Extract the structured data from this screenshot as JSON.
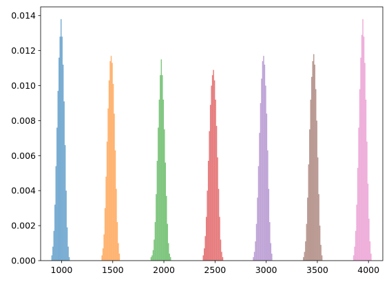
{
  "chart_data": {
    "type": "bar",
    "title": "",
    "xlabel": "",
    "ylabel": "",
    "xlim": [
      795,
      4140
    ],
    "ylim": [
      0,
      0.0145
    ],
    "grid": false,
    "legend": "none",
    "x_ticks": [
      1000,
      1500,
      2000,
      2500,
      3000,
      3500,
      4000
    ],
    "y_ticks": [
      0.0,
      0.002,
      0.004,
      0.006,
      0.008,
      0.01,
      0.012,
      0.014
    ],
    "y_tick_labels": [
      "0.000",
      "0.002",
      "0.004",
      "0.006",
      "0.008",
      "0.010",
      "0.012",
      "0.014"
    ],
    "bin_width": 10,
    "bar_opacity": 0.6,
    "series": [
      {
        "color": "#1f77b4",
        "bins": [
          [
            900,
            0.0003
          ],
          [
            910,
            0.0008
          ],
          [
            920,
            0.0017
          ],
          [
            930,
            0.0032
          ],
          [
            940,
            0.0054
          ],
          [
            950,
            0.0076
          ],
          [
            960,
            0.0097
          ],
          [
            970,
            0.0116
          ],
          [
            980,
            0.0128
          ],
          [
            990,
            0.0138
          ],
          [
            1000,
            0.0128
          ],
          [
            1010,
            0.0112
          ],
          [
            1020,
            0.0091
          ],
          [
            1030,
            0.0066
          ],
          [
            1040,
            0.004
          ],
          [
            1050,
            0.0019
          ],
          [
            1060,
            0.0008
          ],
          [
            1070,
            0.0002
          ]
        ]
      },
      {
        "color": "#ff7f0e",
        "bins": [
          [
            1390,
            0.0003
          ],
          [
            1400,
            0.0007
          ],
          [
            1410,
            0.0015
          ],
          [
            1420,
            0.003
          ],
          [
            1430,
            0.0048
          ],
          [
            1440,
            0.0068
          ],
          [
            1450,
            0.0087
          ],
          [
            1460,
            0.0103
          ],
          [
            1470,
            0.0114
          ],
          [
            1480,
            0.0117
          ],
          [
            1490,
            0.0113
          ],
          [
            1500,
            0.0101
          ],
          [
            1510,
            0.0084
          ],
          [
            1520,
            0.0063
          ],
          [
            1530,
            0.0041
          ],
          [
            1540,
            0.0022
          ],
          [
            1550,
            0.001
          ],
          [
            1560,
            0.0004
          ]
        ]
      },
      {
        "color": "#2ca02c",
        "bins": [
          [
            1870,
            0.0002
          ],
          [
            1880,
            0.0003
          ],
          [
            1890,
            0.0006
          ],
          [
            1900,
            0.0012
          ],
          [
            1910,
            0.0022
          ],
          [
            1920,
            0.0038
          ],
          [
            1930,
            0.0057
          ],
          [
            1940,
            0.0076
          ],
          [
            1950,
            0.0092
          ],
          [
            1960,
            0.0106
          ],
          [
            1970,
            0.0115
          ],
          [
            1980,
            0.0106
          ],
          [
            1990,
            0.0092
          ],
          [
            2000,
            0.0075
          ],
          [
            2010,
            0.0056
          ],
          [
            2020,
            0.0037
          ],
          [
            2030,
            0.0021
          ],
          [
            2040,
            0.001
          ],
          [
            2050,
            0.0004
          ],
          [
            2060,
            0.0002
          ]
        ]
      },
      {
        "color": "#d62728",
        "bins": [
          [
            2380,
            0.0003
          ],
          [
            2390,
            0.0007
          ],
          [
            2400,
            0.0014
          ],
          [
            2410,
            0.0025
          ],
          [
            2420,
            0.004
          ],
          [
            2430,
            0.0057
          ],
          [
            2440,
            0.0074
          ],
          [
            2450,
            0.0089
          ],
          [
            2460,
            0.01
          ],
          [
            2470,
            0.0106
          ],
          [
            2480,
            0.0109
          ],
          [
            2490,
            0.0103
          ],
          [
            2500,
            0.0092
          ],
          [
            2510,
            0.0077
          ],
          [
            2520,
            0.0059
          ],
          [
            2530,
            0.0041
          ],
          [
            2540,
            0.0025
          ],
          [
            2550,
            0.0012
          ],
          [
            2560,
            0.0005
          ],
          [
            2570,
            0.0002
          ]
        ]
      },
      {
        "color": "#9467bd",
        "bins": [
          [
            2870,
            0.0002
          ],
          [
            2880,
            0.0005
          ],
          [
            2890,
            0.0011
          ],
          [
            2900,
            0.0021
          ],
          [
            2910,
            0.0036
          ],
          [
            2920,
            0.0054
          ],
          [
            2930,
            0.0073
          ],
          [
            2940,
            0.009
          ],
          [
            2950,
            0.0104
          ],
          [
            2960,
            0.0114
          ],
          [
            2970,
            0.0117
          ],
          [
            2980,
            0.0112
          ],
          [
            2990,
            0.01
          ],
          [
            3000,
            0.0084
          ],
          [
            3010,
            0.0063
          ],
          [
            3020,
            0.0041
          ],
          [
            3030,
            0.0022
          ],
          [
            3040,
            0.001
          ],
          [
            3050,
            0.0004
          ]
        ]
      },
      {
        "color": "#8c564b",
        "bins": [
          [
            3360,
            0.0002
          ],
          [
            3370,
            0.0005
          ],
          [
            3380,
            0.0011
          ],
          [
            3390,
            0.0021
          ],
          [
            3400,
            0.0036
          ],
          [
            3410,
            0.0055
          ],
          [
            3420,
            0.0075
          ],
          [
            3430,
            0.0092
          ],
          [
            3440,
            0.0105
          ],
          [
            3450,
            0.0114
          ],
          [
            3460,
            0.0118
          ],
          [
            3470,
            0.0112
          ],
          [
            3480,
            0.0098
          ],
          [
            3490,
            0.008
          ],
          [
            3500,
            0.0059
          ],
          [
            3510,
            0.0038
          ],
          [
            3520,
            0.002
          ],
          [
            3530,
            0.0009
          ],
          [
            3540,
            0.0003
          ]
        ]
      },
      {
        "color": "#e377c2",
        "bins": [
          [
            3850,
            0.0003
          ],
          [
            3860,
            0.0008
          ],
          [
            3870,
            0.0017
          ],
          [
            3880,
            0.0032
          ],
          [
            3890,
            0.0053
          ],
          [
            3900,
            0.0076
          ],
          [
            3910,
            0.0098
          ],
          [
            3920,
            0.0116
          ],
          [
            3930,
            0.0129
          ],
          [
            3940,
            0.0138
          ],
          [
            3950,
            0.0128
          ],
          [
            3960,
            0.0113
          ],
          [
            3970,
            0.0092
          ],
          [
            3980,
            0.0068
          ],
          [
            3990,
            0.0044
          ],
          [
            4000,
            0.0024
          ],
          [
            4010,
            0.0011
          ],
          [
            4020,
            0.0004
          ]
        ]
      }
    ]
  }
}
